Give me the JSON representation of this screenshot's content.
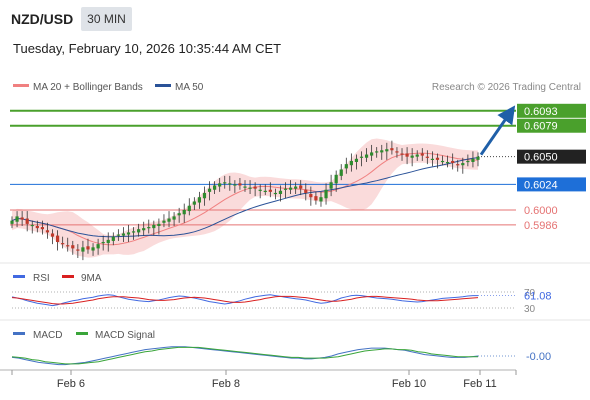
{
  "header": {
    "symbol": "NZD/USD",
    "timeframe": "30 MIN",
    "datetime": "Tuesday, February 10, 2026 10:35:44 AM CET"
  },
  "legend": {
    "ma20": "MA 20 + Bollinger Bands",
    "ma50": "MA 50",
    "credit": "Research © 2026 Trading Central",
    "rsi": "RSI",
    "rsi_ma": "9MA",
    "macd": "MACD",
    "macd_signal": "MACD Signal"
  },
  "colors": {
    "bullish": "#2e8b2e",
    "bearish": "#c0392b",
    "ma20": "#f08080",
    "ma50": "#2a5298",
    "bollinger_fill": "#f8cccc",
    "resistance": "#4aa02c",
    "support": "#e57373",
    "pivot": "#1e6fd8",
    "current": "#222222",
    "arrow": "#1f5fa8",
    "rsi": "#4169e1",
    "rsi_ma": "#d92020",
    "macd": "#4472c4",
    "macd_signal": "#3aa53a"
  },
  "chart_data": [
    {
      "type": "candlestick",
      "title": "NZD/USD 30 MIN",
      "ylim": [
        0.5955,
        0.6105
      ],
      "x_ticks": [
        "Feb 6",
        "Feb 8",
        "Feb 10",
        "Feb 11"
      ],
      "levels": [
        {
          "name": "resistance-2",
          "value": 0.6093,
          "label": "0.6093",
          "style": "resistance"
        },
        {
          "name": "resistance-1",
          "value": 0.6079,
          "label": "0.6079",
          "style": "resistance"
        },
        {
          "name": "current-price",
          "value": 0.605,
          "label": "0.6050",
          "style": "current"
        },
        {
          "name": "pivot",
          "value": 0.6024,
          "label": "0.6024",
          "style": "pivot"
        },
        {
          "name": "support-1",
          "value": 0.6,
          "label": "0.6000",
          "style": "support"
        },
        {
          "name": "support-2",
          "value": 0.5986,
          "label": "0.5986",
          "style": "support"
        }
      ],
      "forecast_arrow": {
        "from": 0.605,
        "to": 0.6093
      },
      "close_series": [
        0.599,
        0.5994,
        0.5991,
        0.5987,
        0.5986,
        0.5983,
        0.5982,
        0.5979,
        0.5975,
        0.597,
        0.5968,
        0.5966,
        0.5964,
        0.5962,
        0.5965,
        0.5963,
        0.5965,
        0.5968,
        0.597,
        0.5972,
        0.5975,
        0.5977,
        0.5978,
        0.5979,
        0.598,
        0.5982,
        0.5983,
        0.5984,
        0.5986,
        0.5987,
        0.599,
        0.5992,
        0.5994,
        0.5997,
        0.6,
        0.6004,
        0.6008,
        0.6012,
        0.6016,
        0.602,
        0.6023,
        0.6025,
        0.6026,
        0.6025,
        0.6024,
        0.6023,
        0.6022,
        0.6021,
        0.602,
        0.6019,
        0.6018,
        0.6017,
        0.6016,
        0.6018,
        0.602,
        0.6021,
        0.6022,
        0.602,
        0.6016,
        0.6012,
        0.6009,
        0.6012,
        0.6019,
        0.6026,
        0.6033,
        0.6038,
        0.6043,
        0.6046,
        0.6048,
        0.605,
        0.6052,
        0.6054,
        0.6055,
        0.6056,
        0.6057,
        0.6056,
        0.6054,
        0.6052,
        0.605,
        0.6051,
        0.6052,
        0.6051,
        0.6049,
        0.6048,
        0.6047,
        0.6046,
        0.6045,
        0.6044,
        0.6043,
        0.6044,
        0.6046,
        0.6048,
        0.605
      ]
    },
    {
      "type": "line",
      "title": "RSI",
      "ylim": [
        0,
        100
      ],
      "levels": [
        30,
        70
      ],
      "last_value": 61.08,
      "series": [
        {
          "name": "RSI",
          "values": [
            58,
            55,
            52,
            48,
            45,
            42,
            40,
            38,
            36,
            38,
            42,
            45,
            48,
            50,
            53,
            55,
            57,
            60,
            62,
            63,
            62,
            58,
            55,
            52,
            50,
            48,
            47,
            46,
            48,
            50,
            53,
            56,
            58,
            60,
            59,
            57,
            55,
            52,
            49,
            46,
            44,
            42,
            40,
            42,
            45,
            48,
            52,
            55,
            58,
            60,
            62,
            63,
            61,
            59,
            57,
            55,
            53,
            52,
            50,
            47,
            44,
            42,
            43,
            46,
            50,
            55,
            58,
            61,
            62,
            61,
            59,
            57,
            55,
            54,
            53,
            52,
            50,
            48,
            47,
            46,
            45,
            46,
            48,
            50,
            52,
            54,
            55,
            56,
            57,
            58,
            60,
            61,
            61.08
          ]
        },
        {
          "name": "9MA",
          "values": [
            56,
            55,
            53,
            51,
            49,
            47,
            45,
            43,
            41,
            40,
            40,
            41,
            42,
            44,
            46,
            48,
            50,
            53,
            55,
            57,
            58,
            58,
            58,
            57,
            56,
            55,
            53,
            51,
            50,
            49,
            49,
            50,
            51,
            53,
            55,
            56,
            57,
            56,
            55,
            53,
            51,
            49,
            47,
            45,
            44,
            44,
            45,
            47,
            49,
            51,
            54,
            56,
            58,
            59,
            59,
            59,
            58,
            57,
            56,
            54,
            52,
            50,
            48,
            47,
            47,
            48,
            50,
            52,
            55,
            57,
            58,
            59,
            59,
            58,
            57,
            56,
            55,
            54,
            53,
            52,
            50,
            49,
            48,
            48,
            48,
            49,
            50,
            51,
            52,
            53,
            54,
            55,
            56
          ]
        }
      ]
    },
    {
      "type": "line",
      "title": "MACD",
      "last_value": -0.0,
      "last_label": "-0.00",
      "series": [
        {
          "name": "MACD",
          "values": [
            -0.2,
            -0.3,
            -0.5,
            -0.7,
            -0.9,
            -1.0,
            -1.1,
            -1.2,
            -1.2,
            -1.1,
            -1.0,
            -0.9,
            -0.7,
            -0.5,
            -0.3,
            -0.1,
            0.1,
            0.3,
            0.5,
            0.7,
            0.9,
            1.0,
            1.1,
            1.2,
            1.3,
            1.3,
            1.3,
            1.2,
            1.1,
            1.0,
            0.9,
            0.8,
            0.7,
            0.6,
            0.5,
            0.4,
            0.3,
            0.2,
            0.1,
            0.0,
            -0.1,
            -0.2,
            -0.3,
            -0.3,
            -0.4,
            -0.4,
            -0.3,
            -0.2,
            0.0,
            0.3,
            0.5,
            0.7,
            0.9,
            1.0,
            1.1,
            1.1,
            1.1,
            1.0,
            0.9,
            0.8,
            0.6,
            0.4,
            0.2,
            0.1,
            0.0,
            -0.1,
            -0.2,
            -0.2,
            -0.2,
            -0.1,
            0.0
          ]
        },
        {
          "name": "MACD Signal",
          "values": [
            -0.1,
            -0.2,
            -0.3,
            -0.5,
            -0.6,
            -0.8,
            -0.9,
            -1.0,
            -1.1,
            -1.1,
            -1.1,
            -1.0,
            -0.9,
            -0.8,
            -0.6,
            -0.4,
            -0.2,
            0.0,
            0.2,
            0.4,
            0.6,
            0.7,
            0.9,
            1.0,
            1.1,
            1.2,
            1.2,
            1.2,
            1.2,
            1.1,
            1.0,
            0.9,
            0.8,
            0.7,
            0.6,
            0.5,
            0.4,
            0.3,
            0.2,
            0.1,
            0.0,
            -0.1,
            -0.2,
            -0.2,
            -0.3,
            -0.3,
            -0.3,
            -0.3,
            -0.2,
            -0.1,
            0.1,
            0.3,
            0.5,
            0.7,
            0.8,
            0.9,
            1.0,
            1.0,
            0.9,
            0.9,
            0.8,
            0.6,
            0.5,
            0.3,
            0.2,
            0.1,
            0.0,
            -0.1,
            -0.1,
            -0.1,
            -0.1
          ]
        }
      ]
    }
  ]
}
